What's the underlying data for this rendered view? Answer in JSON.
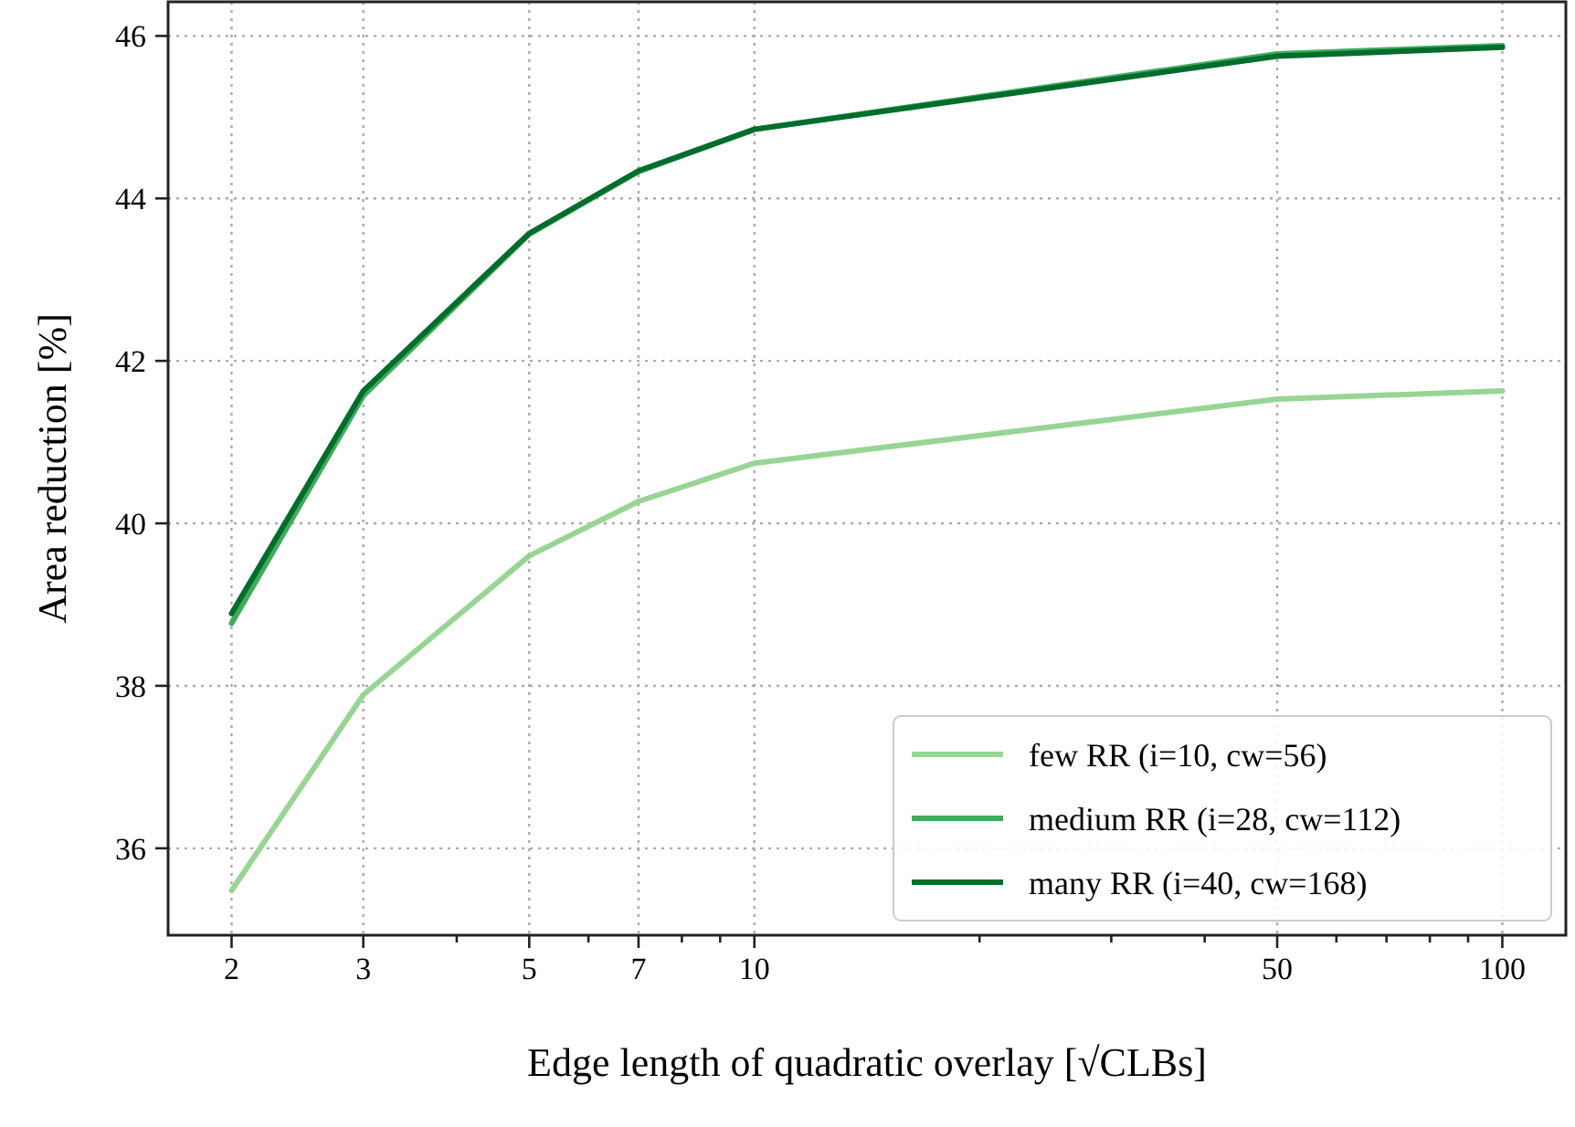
{
  "chart_data": {
    "type": "line",
    "xlabel": "Edge length of quadratic overlay [√CLBs]",
    "ylabel": "Area reduction [%]",
    "x": [
      2,
      3,
      5,
      7,
      10,
      50,
      100
    ],
    "log": "x",
    "xlim": [
      1.645,
      121.6
    ],
    "ylim": [
      34.93,
      46.42
    ],
    "xticks": [
      2,
      3,
      {
        "value": 4,
        "label": null
      },
      5,
      {
        "value": 6,
        "label": null
      },
      7,
      {
        "value": 8,
        "label": null
      },
      {
        "value": 9,
        "label": null
      },
      10,
      {
        "value": 20,
        "label": null
      },
      {
        "value": 30,
        "label": null
      },
      {
        "value": 40,
        "label": null
      },
      50,
      {
        "value": 60,
        "label": null
      },
      {
        "value": 70,
        "label": null
      },
      {
        "value": 80,
        "label": null
      },
      {
        "value": 90,
        "label": null
      },
      100
    ],
    "yticks": [
      36,
      38,
      40,
      42,
      44,
      46
    ],
    "grid": true,
    "legend": "bottom right",
    "marker": "none",
    "line_style": "solid",
    "series": [
      {
        "name": "few RR (i=10, cw=56)",
        "color": "#98d594",
        "values": [
          35.48,
          37.89,
          39.6,
          40.27,
          40.74,
          41.53,
          41.63
        ]
      },
      {
        "name": "medium RR (i=28, cw=112)",
        "color": "#41ab5d",
        "values": [
          38.77,
          41.57,
          43.56,
          44.33,
          44.85,
          45.78,
          45.88
        ]
      },
      {
        "name": "many RR (i=40, cw=168)",
        "color": "#006d2c",
        "values": [
          38.89,
          41.63,
          43.57,
          44.34,
          44.85,
          45.75,
          45.86
        ]
      }
    ]
  }
}
